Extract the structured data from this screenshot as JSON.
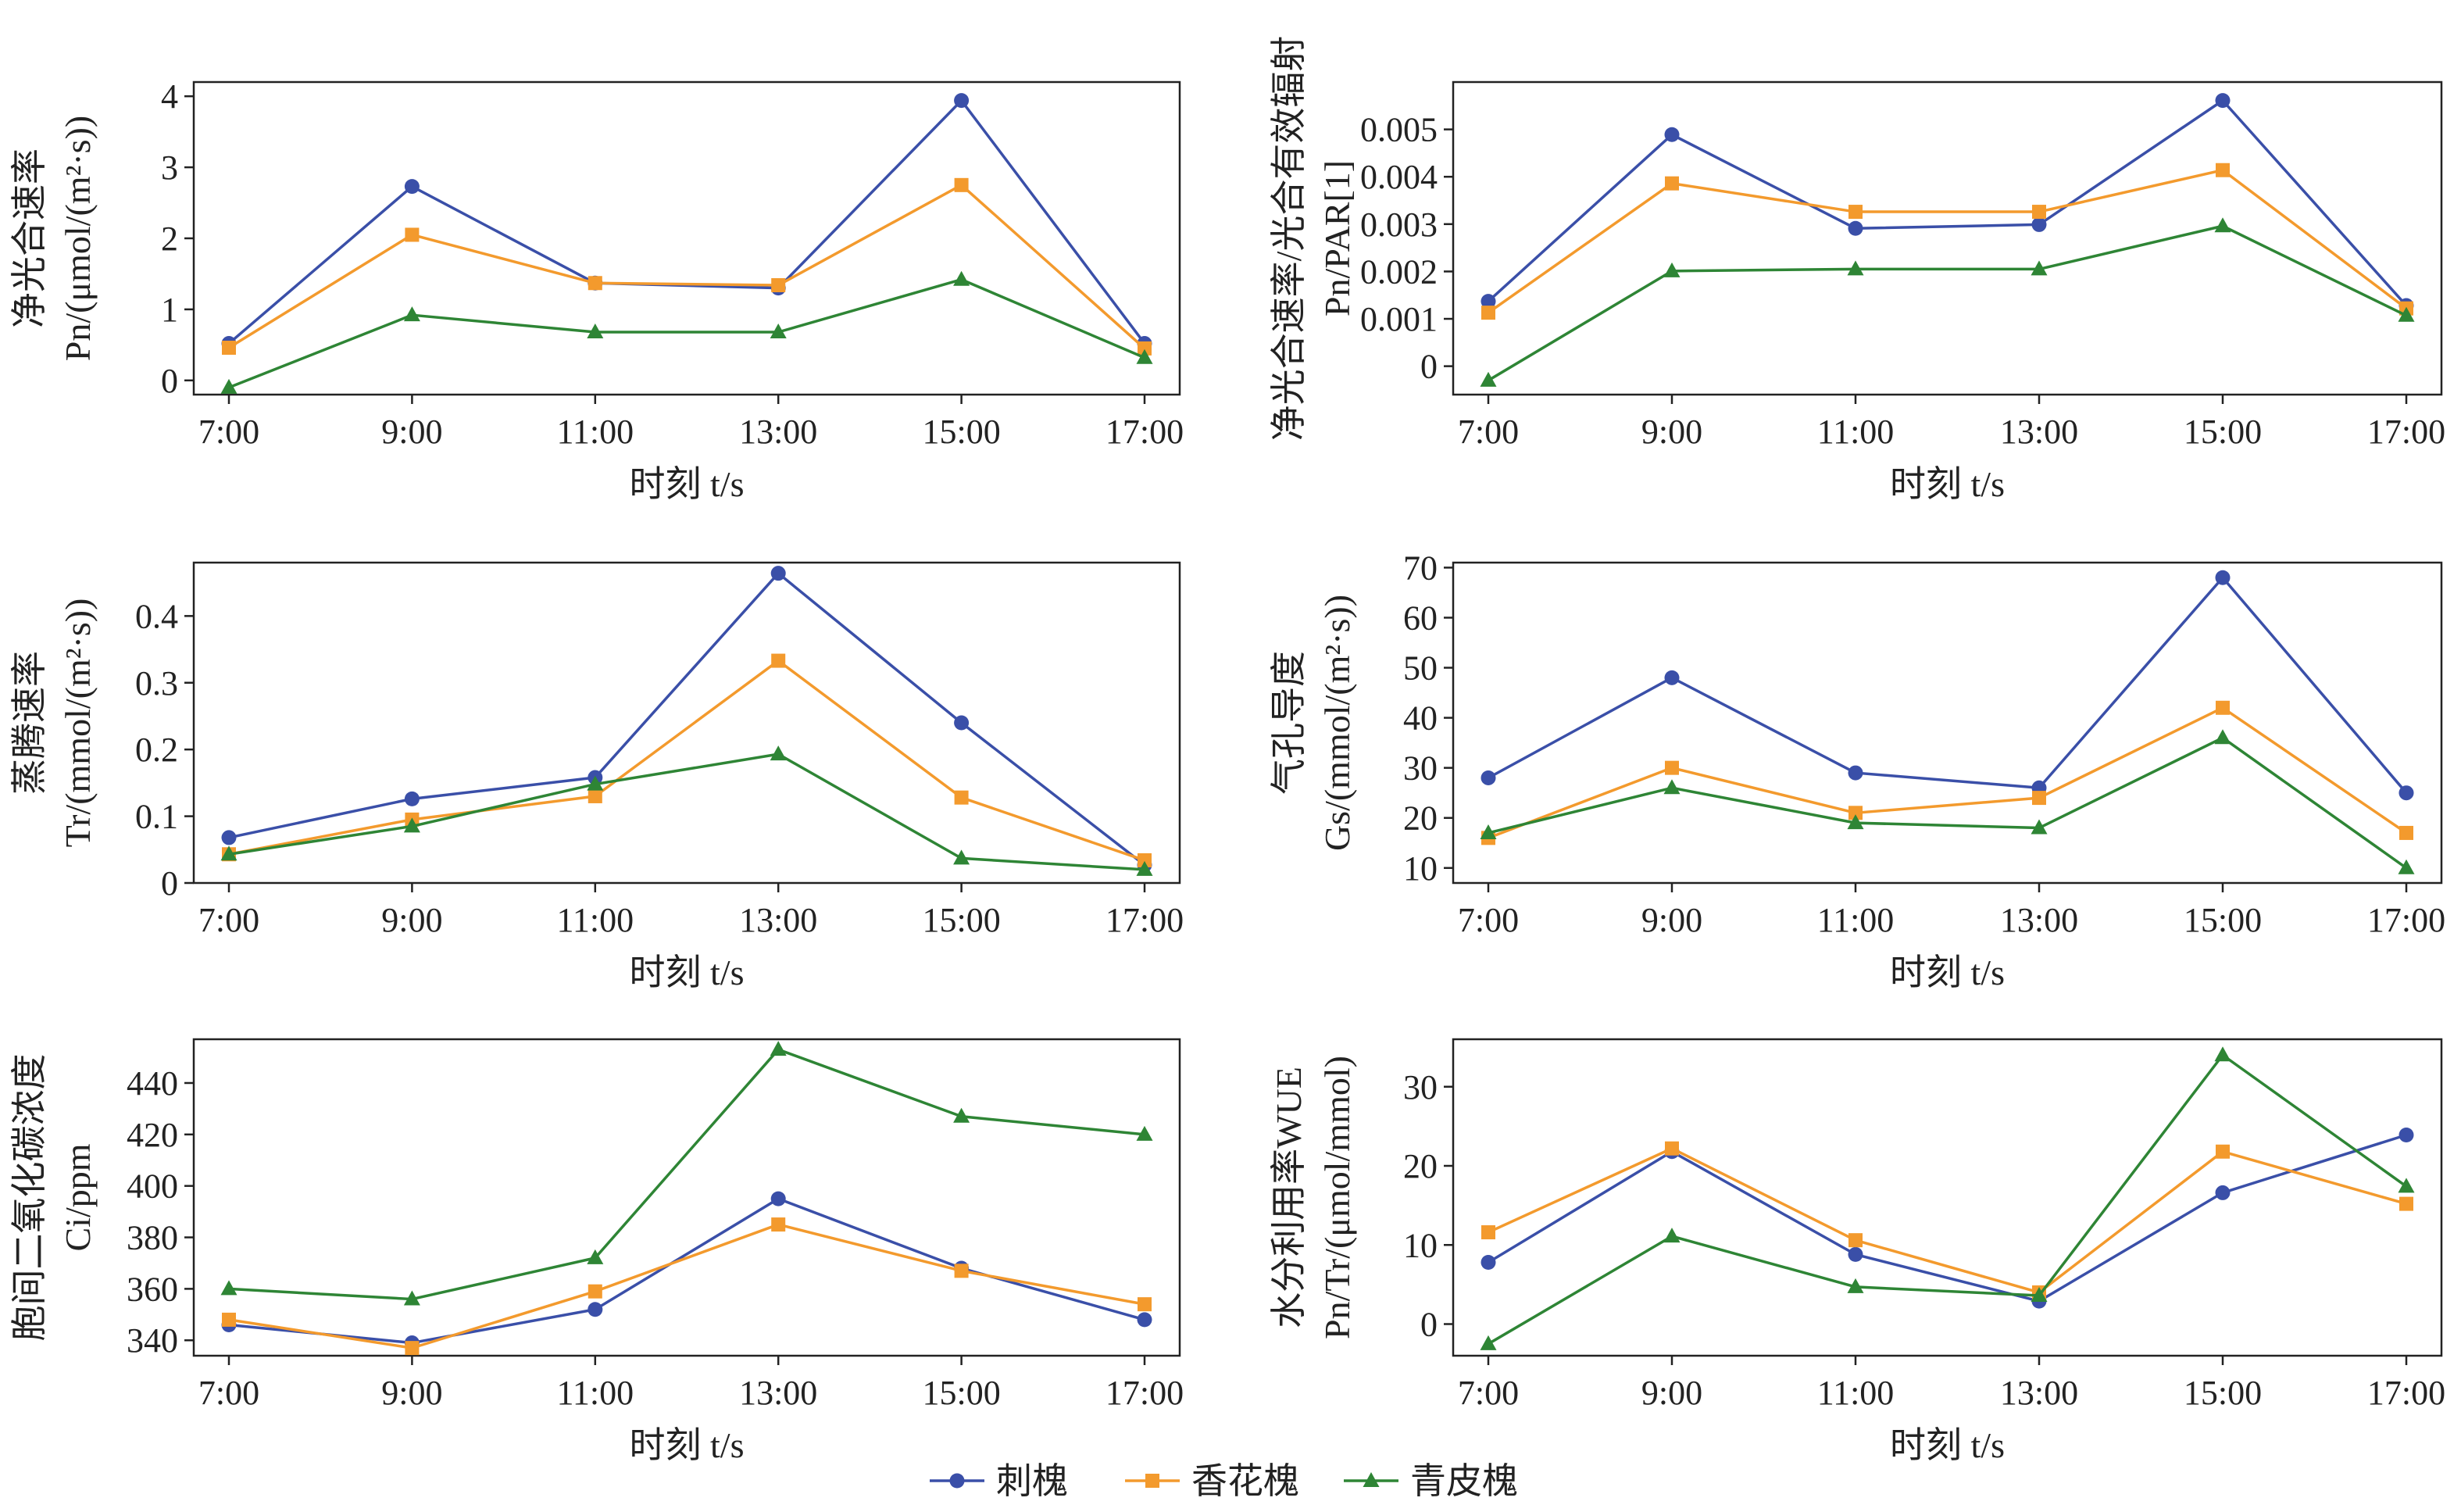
{
  "series_styles": [
    {
      "name": "刺槐",
      "color": "#3a4fa8",
      "marker": "circle"
    },
    {
      "name": "香花槐",
      "color": "#f39a2d",
      "marker": "square"
    },
    {
      "name": "青皮槐",
      "color": "#2e8535",
      "marker": "triangle"
    }
  ],
  "legend": {
    "items": [
      "刺槐",
      "香花槐",
      "青皮槐"
    ],
    "placement": "bottom-center"
  },
  "chart_data": [
    {
      "type": "line",
      "ylabel_line1": "净光合速率",
      "ylabel_line2": "Pn/(μmol/(m²·s))",
      "xlabel": "时刻 t/s",
      "categories": [
        "7:00",
        "9:00",
        "11:00",
        "13:00",
        "15:00",
        "17:00"
      ],
      "ylim": [
        -0.2,
        4.2
      ],
      "yticks": [
        0,
        1,
        2,
        3,
        4
      ],
      "ytick_labels": [
        "0",
        "1",
        "2",
        "3",
        "4"
      ],
      "series": [
        {
          "name": "刺槐",
          "values": [
            0.52,
            2.73,
            1.37,
            1.3,
            3.94,
            0.52
          ]
        },
        {
          "name": "香花槐",
          "values": [
            0.46,
            2.05,
            1.37,
            1.34,
            2.75,
            0.45
          ]
        },
        {
          "name": "青皮槐",
          "values": [
            -0.1,
            0.92,
            0.68,
            0.68,
            1.42,
            0.32
          ]
        }
      ]
    },
    {
      "type": "line",
      "ylabel_line1": "净光合速率/光合有效辐射",
      "ylabel_line2": "Pn/PAR[1]",
      "xlabel": "时刻 t/s",
      "categories": [
        "7:00",
        "9:00",
        "11:00",
        "13:00",
        "15:00",
        "17:00"
      ],
      "ylim": [
        -0.0006,
        0.006
      ],
      "yticks": [
        0,
        0.001,
        0.002,
        0.003,
        0.004,
        0.005
      ],
      "ytick_labels": [
        "0",
        "0.001",
        "0.002",
        "0.003",
        "0.004",
        "0.005"
      ],
      "series": [
        {
          "name": "刺槐",
          "values": [
            0.00137,
            0.00489,
            0.00291,
            0.00299,
            0.00561,
            0.00128
          ]
        },
        {
          "name": "香花槐",
          "values": [
            0.00113,
            0.00386,
            0.00326,
            0.00326,
            0.00414,
            0.00122
          ]
        },
        {
          "name": "青皮槐",
          "values": [
            -0.0003,
            0.00201,
            0.00205,
            0.00205,
            0.00296,
            0.00107
          ]
        }
      ]
    },
    {
      "type": "line",
      "ylabel_line1": "蒸腾速率",
      "ylabel_line2": "Tr/(mmol/(m²·s))",
      "xlabel": "时刻 t/s",
      "categories": [
        "7:00",
        "9:00",
        "11:00",
        "13:00",
        "15:00",
        "17:00"
      ],
      "ylim": [
        0,
        0.48
      ],
      "yticks": [
        0,
        0.1,
        0.2,
        0.3,
        0.4
      ],
      "ytick_labels": [
        "0",
        "0.1",
        "0.2",
        "0.3",
        "0.4"
      ],
      "series": [
        {
          "name": "刺槐",
          "values": [
            0.068,
            0.126,
            0.158,
            0.464,
            0.24,
            0.027
          ]
        },
        {
          "name": "香花槐",
          "values": [
            0.043,
            0.095,
            0.13,
            0.333,
            0.128,
            0.034
          ]
        },
        {
          "name": "青皮槐",
          "values": [
            0.043,
            0.085,
            0.148,
            0.193,
            0.037,
            0.02
          ]
        }
      ]
    },
    {
      "type": "line",
      "ylabel_line1": "气孔导度",
      "ylabel_line2": "Gs/(mmol/(m²·s))",
      "xlabel": "时刻 t/s",
      "categories": [
        "7:00",
        "9:00",
        "11:00",
        "13:00",
        "15:00",
        "17:00"
      ],
      "ylim": [
        7,
        71
      ],
      "yticks": [
        10,
        20,
        30,
        40,
        50,
        60,
        70
      ],
      "ytick_labels": [
        "10",
        "20",
        "30",
        "40",
        "50",
        "60",
        "70"
      ],
      "series": [
        {
          "name": "刺槐",
          "values": [
            28,
            48,
            29,
            26,
            68,
            25
          ]
        },
        {
          "name": "香花槐",
          "values": [
            16,
            30,
            21,
            24,
            42,
            17
          ]
        },
        {
          "name": "青皮槐",
          "values": [
            17,
            26,
            19,
            18,
            36,
            10
          ]
        }
      ]
    },
    {
      "type": "line",
      "ylabel_line1": "胞间二氧化碳浓度",
      "ylabel_line2": "Ci/ppm",
      "xlabel": "时刻 t/s",
      "categories": [
        "7:00",
        "9:00",
        "11:00",
        "13:00",
        "15:00",
        "17:00"
      ],
      "ylim": [
        334,
        457
      ],
      "yticks": [
        340,
        360,
        380,
        400,
        420,
        440
      ],
      "ytick_labels": [
        "340",
        "360",
        "380",
        "400",
        "420",
        "440"
      ],
      "series": [
        {
          "name": "刺槐",
          "values": [
            346,
            339,
            352,
            395,
            368,
            348
          ]
        },
        {
          "name": "香花槐",
          "values": [
            348,
            337,
            359,
            385,
            367,
            354
          ]
        },
        {
          "name": "青皮槐",
          "values": [
            360,
            356,
            372,
            453,
            427,
            420
          ]
        }
      ]
    },
    {
      "type": "line",
      "ylabel_line1": "水分利用率WUE",
      "ylabel_line2": "Pn/Tr/(μmol/mmol)",
      "xlabel": "时刻 t/s",
      "categories": [
        "7:00",
        "9:00",
        "11:00",
        "13:00",
        "15:00",
        "17:00"
      ],
      "ylim": [
        -4,
        36
      ],
      "yticks": [
        0,
        10,
        20,
        30
      ],
      "ytick_labels": [
        "0",
        "10",
        "20",
        "30"
      ],
      "series": [
        {
          "name": "刺槐",
          "values": [
            7.8,
            21.8,
            8.8,
            2.9,
            16.6,
            23.9
          ]
        },
        {
          "name": "香花槐",
          "values": [
            11.6,
            22.2,
            10.6,
            4.0,
            21.8,
            15.2
          ]
        },
        {
          "name": "青皮槐",
          "values": [
            -2.5,
            11.1,
            4.7,
            3.6,
            34.0,
            17.4
          ]
        }
      ]
    }
  ]
}
